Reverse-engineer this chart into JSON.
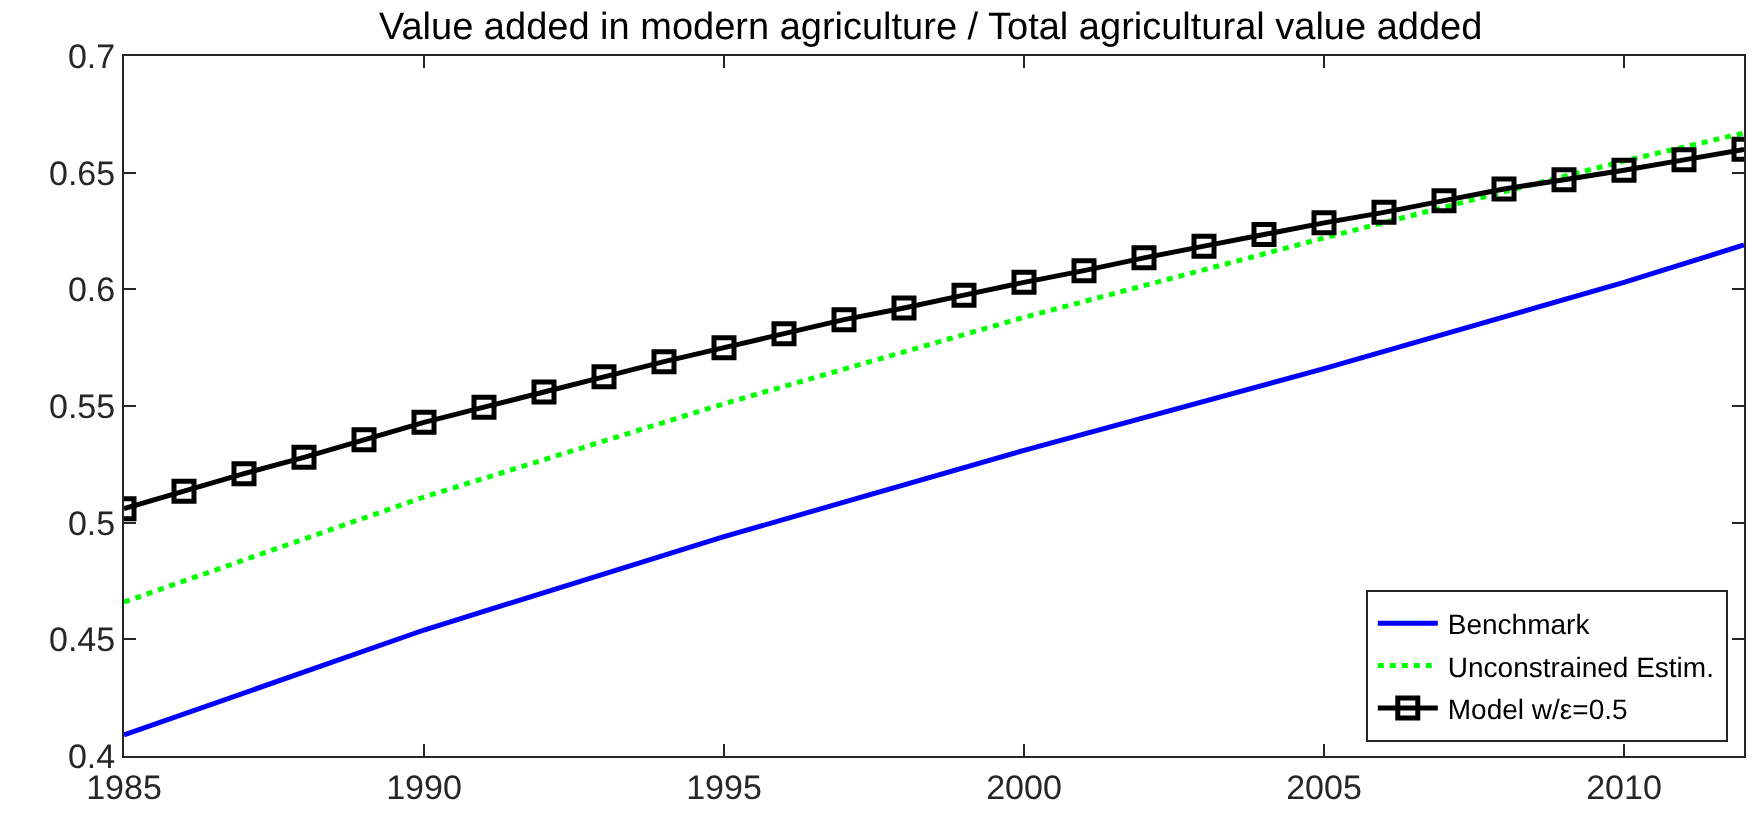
{
  "chart_data": {
    "type": "line",
    "title": "Value added in modern agriculture / Total agricultural value added",
    "xlim": [
      1985,
      2012
    ],
    "xticks": [
      1985,
      1990,
      1995,
      2000,
      2005,
      2010
    ],
    "ylim": [
      0.4,
      0.7
    ],
    "yticks": [
      0.4,
      0.45,
      0.5,
      0.55,
      0.6,
      0.65,
      0.7
    ],
    "grid": false,
    "legend": "bottom right",
    "series": [
      {
        "name": "Benchmark",
        "color": "#0000ff",
        "line_style": "solid",
        "marker": "none",
        "x": [
          1985,
          1990,
          1995,
          2000,
          2005,
          2010,
          2012
        ],
        "values": [
          0.409,
          0.454,
          0.494,
          0.531,
          0.566,
          0.603,
          0.619
        ]
      },
      {
        "name": "Unconstrained Estim.",
        "color": "#00ff00",
        "line_style": "dotted",
        "marker": "none",
        "x": [
          1985,
          1990,
          1995,
          2000,
          2005,
          2010,
          2012
        ],
        "values": [
          0.466,
          0.511,
          0.551,
          0.588,
          0.622,
          0.655,
          0.667
        ]
      },
      {
        "name": "Model w/ε=0.5",
        "color": "#000000",
        "line_style": "solid",
        "marker": "square",
        "x": [
          1985,
          1986,
          1987,
          1988,
          1989,
          1990,
          1991,
          1992,
          1993,
          1994,
          1995,
          1996,
          1997,
          1998,
          1999,
          2000,
          2001,
          2002,
          2003,
          2004,
          2005,
          2006,
          2007,
          2008,
          2009,
          2010,
          2011,
          2012
        ],
        "values": [
          0.506,
          0.5135,
          0.521,
          0.528,
          0.5355,
          0.543,
          0.5495,
          0.556,
          0.5625,
          0.569,
          0.575,
          0.581,
          0.587,
          0.592,
          0.5975,
          0.603,
          0.608,
          0.6135,
          0.6185,
          0.6235,
          0.6285,
          0.633,
          0.638,
          0.643,
          0.647,
          0.651,
          0.6555,
          0.66
        ]
      }
    ]
  }
}
